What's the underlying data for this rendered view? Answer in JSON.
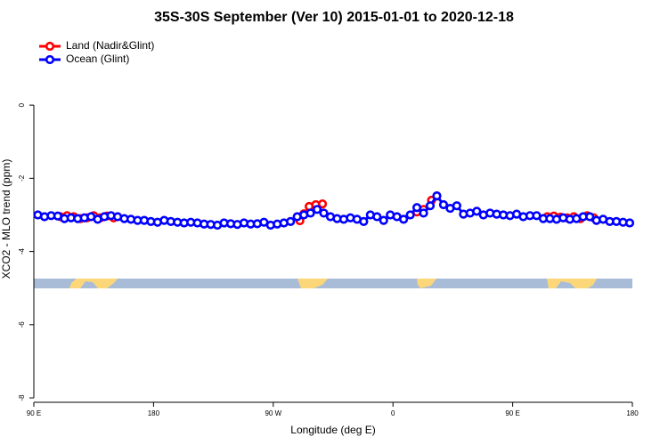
{
  "chart_data": {
    "type": "line",
    "title": "35S-30S September (Ver 10)   2015-01-01 to 2020-12-18",
    "x_label": "Longitude (deg E)",
    "y_label": "XCO2 - MLO trend (ppm)",
    "xlim": [
      90,
      540
    ],
    "xticks": [
      {
        "value": 90,
        "label": "90 E"
      },
      {
        "value": 180,
        "label": "180"
      },
      {
        "value": 270,
        "label": "90 W"
      },
      {
        "value": 360,
        "label": "0"
      },
      {
        "value": 450,
        "label": "90 E"
      },
      {
        "value": 540,
        "label": "180"
      }
    ],
    "ylim": [
      -8.12,
      1.9
    ],
    "yticks": [
      0,
      -2,
      -4,
      -6,
      -8
    ],
    "grid": false,
    "legend": "top-left",
    "series": [
      {
        "name": "Land (Nadir&Glint)",
        "color": "#ff0000",
        "x": [
          110,
          115,
          120,
          125,
          130,
          135,
          140,
          145,
          150,
          null,
          290,
          293,
          297,
          302,
          307,
          null,
          378,
          383,
          389,
          393,
          null,
          476,
          481,
          486,
          491,
          496,
          501,
          506,
          511
        ],
        "values": [
          -3.05,
          -3.02,
          -3.05,
          -3.1,
          -3.08,
          -3.02,
          -3.08,
          -3.03,
          -3.08,
          null,
          -3.16,
          -2.97,
          -2.77,
          -2.72,
          -2.7,
          null,
          -2.92,
          -2.85,
          -2.6,
          -2.48,
          null,
          -3.05,
          -3.03,
          -3.06,
          -3.08,
          -3.05,
          -3.1,
          -3.02,
          -3.08
        ]
      },
      {
        "name": "Ocean (Glint)",
        "color": "#0000ff",
        "x": [
          93,
          98,
          103,
          108,
          113,
          118,
          123,
          128,
          133,
          138,
          143,
          148,
          153,
          158,
          163,
          168,
          173,
          178,
          183,
          188,
          193,
          198,
          203,
          208,
          213,
          218,
          223,
          228,
          233,
          238,
          243,
          248,
          253,
          258,
          263,
          268,
          273,
          278,
          283,
          288,
          293,
          298,
          303,
          308,
          313,
          318,
          323,
          328,
          333,
          338,
          343,
          348,
          353,
          358,
          363,
          368,
          373,
          378,
          383,
          388,
          393,
          398,
          403,
          408,
          413,
          418,
          423,
          428,
          433,
          438,
          443,
          448,
          453,
          458,
          463,
          468,
          473,
          478,
          483,
          488,
          493,
          498,
          503,
          508,
          513,
          518,
          523,
          528,
          533,
          538
        ],
        "values": [
          -3.0,
          -3.05,
          -3.02,
          -3.03,
          -3.1,
          -3.08,
          -3.1,
          -3.08,
          -3.05,
          -3.12,
          -3.05,
          -3.02,
          -3.05,
          -3.1,
          -3.12,
          -3.15,
          -3.15,
          -3.18,
          -3.2,
          -3.15,
          -3.18,
          -3.2,
          -3.22,
          -3.2,
          -3.22,
          -3.25,
          -3.26,
          -3.28,
          -3.22,
          -3.24,
          -3.26,
          -3.22,
          -3.25,
          -3.24,
          -3.2,
          -3.28,
          -3.25,
          -3.22,
          -3.18,
          -3.05,
          -3.0,
          -2.95,
          -2.85,
          -2.95,
          -3.05,
          -3.1,
          -3.12,
          -3.08,
          -3.12,
          -3.18,
          -3.0,
          -3.05,
          -3.15,
          -3.0,
          -3.05,
          -3.12,
          -3.0,
          -2.8,
          -2.95,
          -2.75,
          -2.48,
          -2.72,
          -2.82,
          -2.75,
          -2.98,
          -2.95,
          -2.9,
          -3.0,
          -2.95,
          -2.98,
          -3.0,
          -3.02,
          -2.98,
          -3.05,
          -3.02,
          -3.02,
          -3.1,
          -3.1,
          -3.12,
          -3.08,
          -3.12,
          -3.1,
          -3.05,
          -3.05,
          -3.15,
          -3.12,
          -3.18,
          -3.18,
          -3.2,
          -3.22
        ]
      }
    ]
  }
}
